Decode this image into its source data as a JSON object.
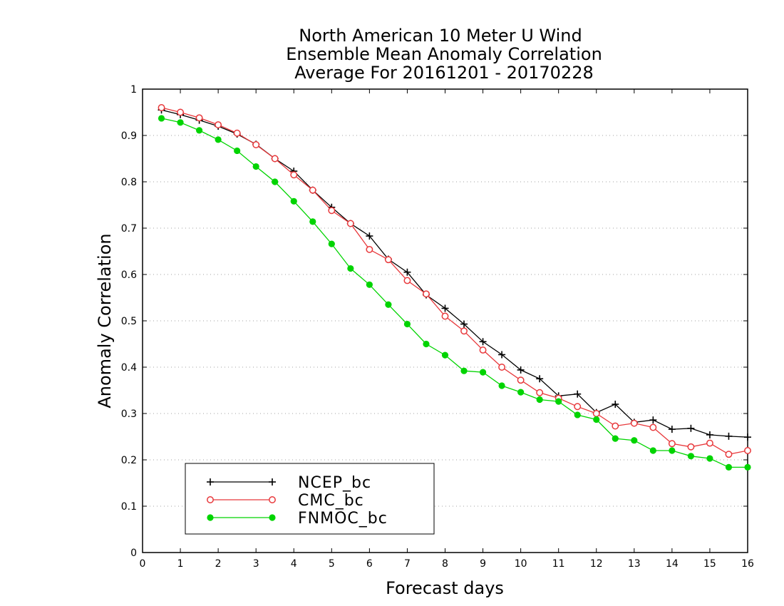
{
  "chart_data": {
    "type": "line",
    "title_lines": [
      "North American 10 Meter U Wind",
      "Ensemble Mean Anomaly Correlation",
      "Average For 20161201 - 20170228"
    ],
    "xlabel": "Forecast days",
    "ylabel": "Anomaly Correlation",
    "xlim": [
      0,
      16
    ],
    "ylim": [
      0,
      1
    ],
    "x_ticks": [
      "0",
      "1",
      "2",
      "3",
      "4",
      "5",
      "6",
      "7",
      "8",
      "9",
      "10",
      "11",
      "12",
      "13",
      "14",
      "15",
      "16"
    ],
    "y_ticks": [
      "0",
      "0.1",
      "0.2",
      "0.3",
      "0.4",
      "0.5",
      "0.6",
      "0.7",
      "0.8",
      "0.9",
      "1"
    ],
    "grid": "horizontal dotted",
    "legend_position": "bottom-left",
    "x": [
      0.5,
      1,
      1.5,
      2,
      2.5,
      3,
      3.5,
      4,
      4.5,
      5,
      5.5,
      6,
      6.5,
      7,
      7.5,
      8,
      8.5,
      9,
      9.5,
      10,
      10.5,
      11,
      11.5,
      12,
      12.5,
      13,
      13.5,
      14,
      14.5,
      15,
      15.5,
      16
    ],
    "series": [
      {
        "name": "NCEP_bc",
        "color": "#000000",
        "marker": "plus",
        "values": [
          0.955,
          0.945,
          0.933,
          0.92,
          0.903,
          0.881,
          0.85,
          0.823,
          0.782,
          0.745,
          0.71,
          0.683,
          0.633,
          0.605,
          0.556,
          0.527,
          0.493,
          0.455,
          0.427,
          0.394,
          0.375,
          0.338,
          0.342,
          0.302,
          0.32,
          0.281,
          0.286,
          0.266,
          0.268,
          0.254,
          0.251,
          0.249
        ]
      },
      {
        "name": "CMC_bc",
        "color": "#e8383b",
        "marker": "open-circle",
        "values": [
          0.96,
          0.95,
          0.938,
          0.923,
          0.905,
          0.88,
          0.85,
          0.815,
          0.782,
          0.738,
          0.71,
          0.654,
          0.632,
          0.587,
          0.558,
          0.51,
          0.478,
          0.437,
          0.4,
          0.372,
          0.345,
          0.333,
          0.315,
          0.3,
          0.273,
          0.279,
          0.27,
          0.235,
          0.228,
          0.236,
          0.212,
          0.22
        ]
      },
      {
        "name": "FNMOC_bc",
        "color": "#00d400",
        "marker": "filled-circle",
        "values": [
          0.937,
          0.928,
          0.911,
          0.891,
          0.867,
          0.833,
          0.8,
          0.758,
          0.714,
          0.666,
          0.613,
          0.578,
          0.535,
          0.493,
          0.45,
          0.426,
          0.392,
          0.389,
          0.36,
          0.346,
          0.33,
          0.326,
          0.297,
          0.287,
          0.246,
          0.242,
          0.22,
          0.22,
          0.208,
          0.203,
          0.184,
          0.184
        ]
      }
    ]
  }
}
